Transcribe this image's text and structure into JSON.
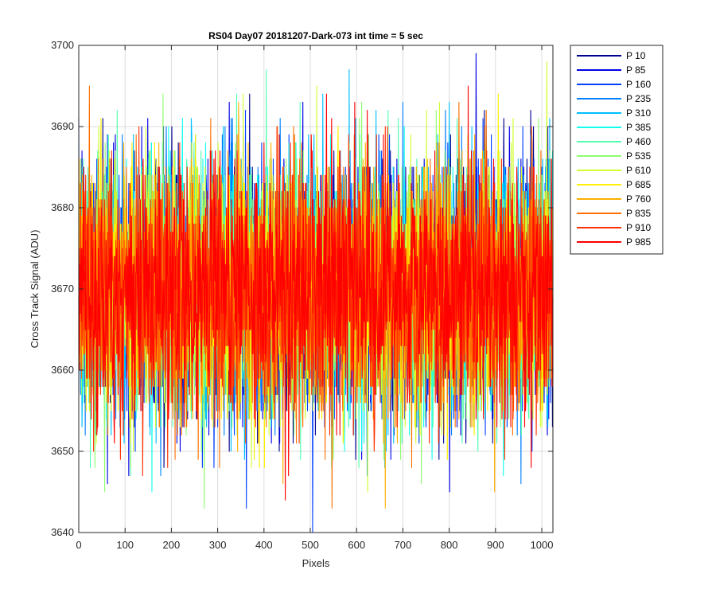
{
  "chart_data": {
    "type": "line",
    "title": "RS04 Day07 20181207-Dark-073 int time = 5 sec",
    "xlabel": "Pixels",
    "ylabel": "Cross Track Signal (ADU)",
    "xlim": [
      0,
      1024
    ],
    "ylim": [
      3640,
      3700
    ],
    "xticks": [
      0,
      100,
      200,
      300,
      400,
      500,
      600,
      700,
      800,
      900,
      1000
    ],
    "yticks": [
      3640,
      3650,
      3660,
      3670,
      3680,
      3690,
      3700
    ],
    "grid": true,
    "legend_position": "outside-top-right",
    "noise_model": {
      "mean": 3670,
      "std": 7.5,
      "min": 3640,
      "max": 3700,
      "points_per_series": 1024
    },
    "series": [
      {
        "name": "P 10",
        "color": "#00008f"
      },
      {
        "name": "P 85",
        "color": "#0000e6"
      },
      {
        "name": "P 160",
        "color": "#0040ff"
      },
      {
        "name": "P 235",
        "color": "#0080ff"
      },
      {
        "name": "P 310",
        "color": "#00c0ff"
      },
      {
        "name": "P 385",
        "color": "#10ffef"
      },
      {
        "name": "P 460",
        "color": "#50ffaf"
      },
      {
        "name": "P 535",
        "color": "#90ff70"
      },
      {
        "name": "P 610",
        "color": "#d0ff30"
      },
      {
        "name": "P 685",
        "color": "#ffef00"
      },
      {
        "name": "P 760",
        "color": "#ffb000"
      },
      {
        "name": "P 835",
        "color": "#ff7000"
      },
      {
        "name": "P 910",
        "color": "#ff3000"
      },
      {
        "name": "P 985",
        "color": "#ff0000"
      }
    ]
  }
}
